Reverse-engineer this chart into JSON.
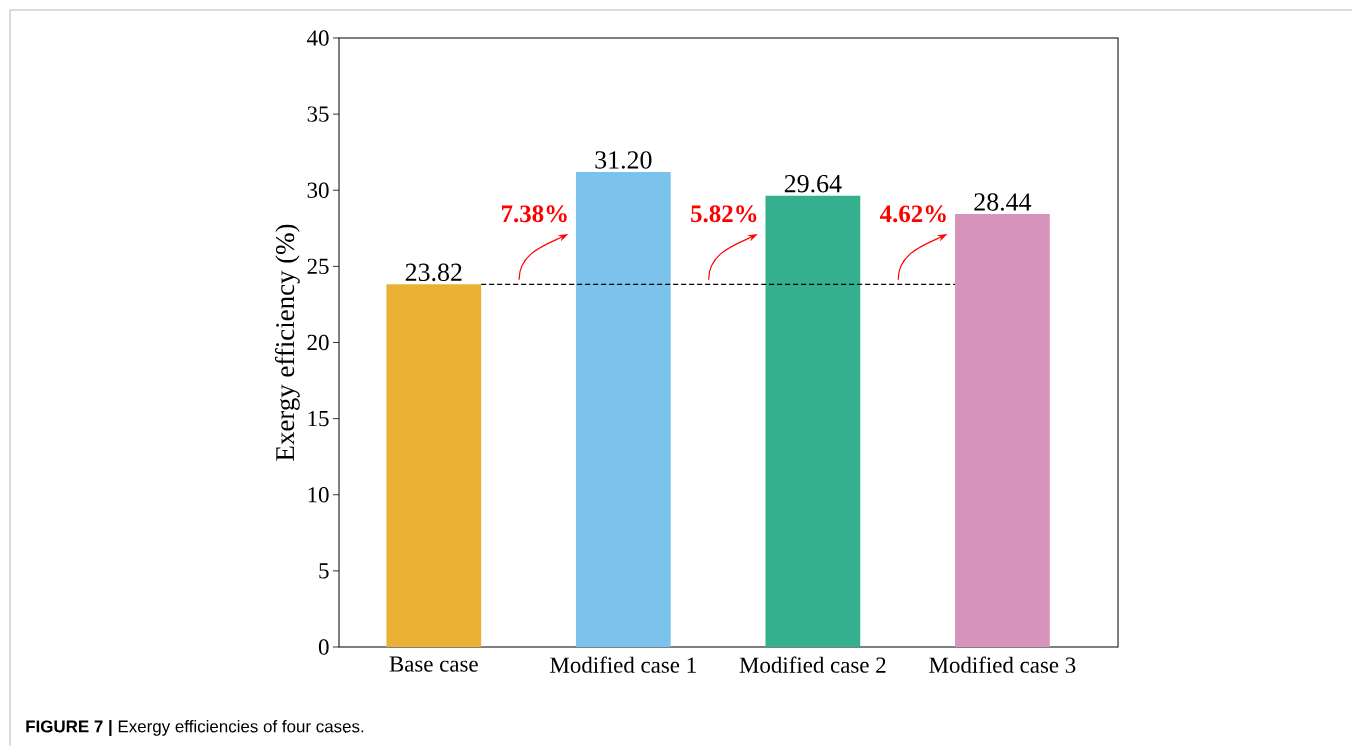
{
  "chart_data": {
    "type": "bar",
    "ylabel": "Exergy efficiency (%)",
    "categories": [
      "Base case",
      "Modified case 1",
      "Modified case 2",
      "Modified case 3"
    ],
    "values": [
      23.82,
      31.2,
      29.64,
      28.44
    ],
    "colors": [
      "#ebb135",
      "#7bc3ec",
      "#35b08f",
      "#d794bb"
    ],
    "value_labels": [
      "23.82",
      "31.20",
      "29.64",
      "28.44"
    ],
    "ylim": [
      0,
      40
    ],
    "yticks": [
      0,
      5,
      10,
      15,
      20,
      25,
      30,
      35,
      40
    ],
    "ref_lines": [
      {
        "axis": "y",
        "value": 23.82,
        "color": "#000000",
        "line_style": "dashed"
      }
    ],
    "annotations": [
      "**7.38%**",
      "**5.82%**",
      "**4.62%**",
      "**FIGURE 7 |** Exergy efficiencies of four cases."
    ],
    "grid": false
  }
}
